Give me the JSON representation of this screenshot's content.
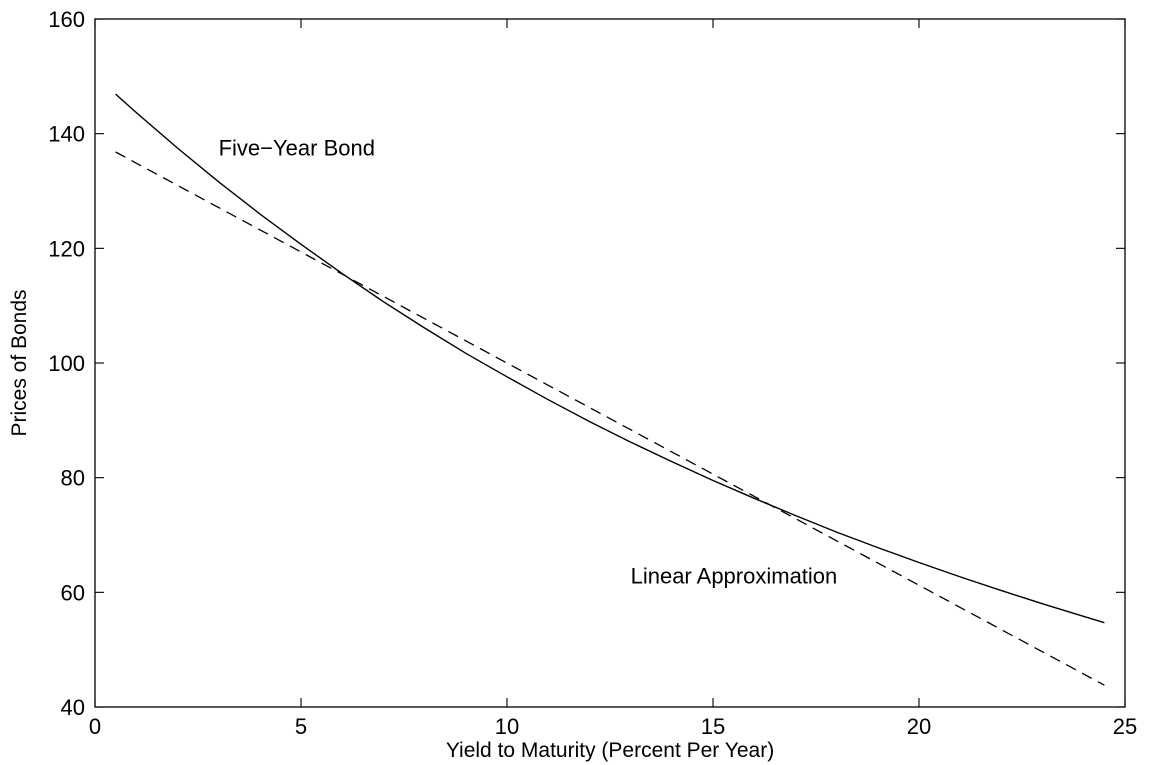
{
  "chart_data": {
    "type": "line",
    "title": "",
    "xlabel": "Yield to Maturity (Percent Per Year)",
    "ylabel": "Prices of Bonds",
    "xlim": [
      0,
      25
    ],
    "ylim": [
      40,
      160
    ],
    "xticks": [
      0,
      5,
      10,
      15,
      20,
      25
    ],
    "yticks": [
      40,
      60,
      80,
      100,
      120,
      140,
      160
    ],
    "grid": false,
    "legend": "none",
    "series": [
      {
        "style": "solid",
        "x": [
          0.5,
          1,
          2,
          3,
          4,
          5,
          6,
          7,
          8,
          9,
          10,
          11,
          12,
          13,
          14,
          15,
          16,
          17,
          18,
          19,
          20,
          21,
          22,
          23,
          24,
          24.5
        ],
        "y": [
          146.9,
          143.7,
          137.5,
          131.6,
          126.0,
          120.7,
          115.6,
          110.7,
          106.1,
          101.7,
          97.6,
          93.6,
          89.8,
          86.2,
          82.8,
          79.5,
          76.4,
          73.4,
          70.5,
          67.8,
          65.2,
          62.7,
          60.3,
          58.0,
          55.8,
          54.7
        ]
      },
      {
        "style": "dashed",
        "x": [
          0.5,
          24.5
        ],
        "y": [
          136.8,
          43.8
        ]
      }
    ],
    "annotations": [
      {
        "text": "Five−Year Bond",
        "x": 3.0,
        "y": 136.2,
        "anchor": "start"
      },
      {
        "text": "Linear Approximation",
        "x": 13.0,
        "y": 61.5,
        "anchor": "start"
      }
    ]
  }
}
